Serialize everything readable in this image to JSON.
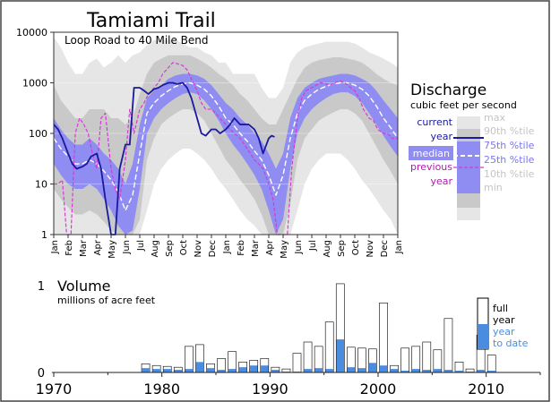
{
  "chart_data": [
    {
      "type": "area",
      "title": "Tamiami Trail",
      "subtitle": "Loop Road to 40 Mile Bend",
      "y_scale": "log",
      "ylim": [
        1,
        10000
      ],
      "y_ticks": [
        "10000",
        "1000",
        "100",
        "10",
        "1"
      ],
      "x_tick_labels": [
        "Jan",
        "Feb",
        "Mar",
        "Apr",
        "May",
        "Jun",
        "Jul",
        "Aug",
        "Sep",
        "Oct",
        "Nov",
        "Dec",
        "Jan",
        "Feb",
        "Mar",
        "Apr",
        "May",
        "Jun",
        "Jul",
        "Aug",
        "Sep",
        "Oct",
        "Nov",
        "Dec",
        "Jan"
      ],
      "legend": {
        "title": "Discharge",
        "units": "cubic feet per second",
        "current": [
          "current",
          "year"
        ],
        "median": "median",
        "previous": [
          "previous",
          "year"
        ],
        "pct": [
          "max",
          "90th  %tile",
          "75th  %tile",
          "25th  %tile",
          "10th  %tile",
          "min"
        ]
      },
      "colors": {
        "max_min_band": "#e6e6e6",
        "p10_p90_band": "#c9c9c9",
        "p25_p75_band": "#8f8cf2",
        "median": "#ffffff",
        "current": "#1a1a9e",
        "previous": "#d63ad6"
      },
      "x_months": [
        0,
        0.5,
        1,
        1.5,
        2,
        2.5,
        3,
        3.5,
        4,
        4.5,
        5,
        5.5,
        6,
        6.5,
        7,
        7.5,
        8,
        8.5,
        9,
        9.5,
        10,
        10.5,
        11,
        11.5,
        12,
        12.5,
        13,
        13.5,
        14,
        14.5,
        15,
        15.5,
        16,
        16.5,
        17,
        17.5,
        18,
        18.5,
        19,
        19.5,
        20,
        20.5,
        21,
        21.5,
        22,
        22.5,
        23,
        23.5,
        24
      ],
      "series": [
        {
          "name": "max",
          "values": [
            8000,
            5000,
            2500,
            1500,
            1500,
            2500,
            3000,
            2000,
            2500,
            3500,
            2500,
            3500,
            4000,
            5500,
            7000,
            7000,
            7000,
            7000,
            6000,
            5000,
            5000,
            4000,
            3500,
            2500,
            2500,
            1500,
            1500,
            1500,
            1500,
            800,
            500,
            500,
            800,
            2500,
            4000,
            5000,
            5500,
            6000,
            6500,
            6500,
            6500,
            6500,
            6000,
            5000,
            4000,
            3500,
            3000,
            2500,
            2000
          ]
        },
        {
          "name": "90th %tile",
          "values": [
            900,
            450,
            300,
            200,
            200,
            300,
            300,
            300,
            200,
            200,
            150,
            200,
            600,
            1500,
            2500,
            3000,
            3500,
            3500,
            3500,
            3500,
            3000,
            2500,
            2000,
            1500,
            1200,
            900,
            600,
            450,
            300,
            200,
            150,
            150,
            300,
            600,
            1200,
            2000,
            2500,
            2800,
            3000,
            3200,
            3200,
            3000,
            2800,
            2500,
            2000,
            1500,
            1200,
            1000,
            900
          ]
        },
        {
          "name": "75th %tile",
          "values": [
            200,
            120,
            80,
            60,
            60,
            80,
            60,
            40,
            30,
            20,
            10,
            25,
            150,
            500,
            700,
            900,
            1200,
            1400,
            1500,
            1500,
            1400,
            1200,
            900,
            600,
            400,
            300,
            200,
            150,
            100,
            70,
            40,
            20,
            40,
            200,
            500,
            800,
            1000,
            1200,
            1300,
            1400,
            1500,
            1500,
            1400,
            1200,
            1000,
            700,
            450,
            300,
            200
          ]
        },
        {
          "name": "median",
          "values": [
            80,
            50,
            35,
            25,
            25,
            30,
            25,
            18,
            12,
            7,
            3,
            6,
            40,
            250,
            400,
            550,
            700,
            850,
            950,
            1000,
            900,
            750,
            550,
            350,
            200,
            150,
            100,
            70,
            45,
            30,
            15,
            6,
            15,
            80,
            250,
            450,
            600,
            750,
            850,
            950,
            1000,
            1000,
            900,
            750,
            550,
            350,
            200,
            130,
            80
          ]
        },
        {
          "name": "25th %tile",
          "values": [
            25,
            15,
            10,
            8,
            8,
            10,
            8,
            5,
            3,
            1.5,
            1,
            1.2,
            8,
            100,
            200,
            300,
            400,
            500,
            600,
            650,
            600,
            450,
            300,
            180,
            100,
            60,
            40,
            25,
            15,
            8,
            3,
            1,
            2,
            20,
            100,
            200,
            300,
            400,
            500,
            600,
            650,
            650,
            550,
            400,
            250,
            150,
            90,
            55,
            35
          ]
        },
        {
          "name": "10th %tile",
          "values": [
            8,
            5,
            3.5,
            2.5,
            2.5,
            3,
            2.5,
            1.8,
            1.2,
            1,
            1,
            1,
            2,
            30,
            80,
            150,
            200,
            250,
            300,
            300,
            250,
            180,
            100,
            55,
            30,
            20,
            12,
            8,
            5,
            2.5,
            1,
            1,
            1,
            4,
            30,
            80,
            120,
            180,
            220,
            260,
            300,
            300,
            250,
            180,
            100,
            55,
            30,
            18,
            10
          ]
        },
        {
          "name": "min",
          "values": [
            1,
            1,
            1,
            1,
            1,
            1,
            1,
            1,
            1,
            1,
            1,
            1,
            1,
            3,
            10,
            20,
            30,
            40,
            50,
            50,
            40,
            30,
            20,
            12,
            8,
            5,
            3,
            2,
            1.5,
            1,
            1,
            1,
            1,
            1,
            3,
            10,
            20,
            30,
            40,
            40,
            40,
            30,
            20,
            12,
            8,
            5,
            3,
            2,
            1
          ]
        },
        {
          "name": "current year",
          "x": [
            0,
            0.3,
            0.6,
            1,
            1.3,
            1.6,
            2,
            2.3,
            2.6,
            3,
            3.3,
            3.6,
            4,
            4.3,
            4.6,
            5,
            5.3,
            5.6,
            6,
            6.3,
            6.6,
            7,
            7.3,
            7.6,
            8,
            8.3,
            8.6,
            9,
            9.3,
            9.6,
            10,
            10.3,
            10.6,
            11,
            11.3,
            11.6,
            12,
            12.3,
            12.6,
            13,
            13.3,
            13.6,
            14,
            14.3,
            14.6,
            15,
            15.2,
            15.4
          ],
          "values": [
            150,
            120,
            80,
            40,
            25,
            20,
            22,
            25,
            35,
            40,
            20,
            5,
            1,
            1,
            20,
            60,
            60,
            800,
            800,
            700,
            600,
            750,
            800,
            900,
            1000,
            1000,
            950,
            1000,
            800,
            500,
            200,
            100,
            90,
            120,
            120,
            100,
            120,
            150,
            200,
            150,
            150,
            150,
            120,
            80,
            40,
            80,
            90,
            85
          ]
        },
        {
          "name": "previous year",
          "x": [
            0,
            0.3,
            0.6,
            0.9,
            1.2,
            1.5,
            1.8,
            2.1,
            2.4,
            2.7,
            3,
            3.3,
            3.6,
            4,
            4.3,
            4.6,
            5,
            5.3,
            5.6,
            6,
            6.3,
            6.6,
            7,
            7.3,
            7.6,
            8,
            8.3,
            8.6,
            9,
            9.3,
            9.6,
            10,
            10.3,
            10.6,
            11,
            11.3,
            11.6,
            12,
            12.3,
            12.6,
            13,
            13.3,
            13.6,
            14,
            14.3,
            14.6,
            15,
            15.3,
            15.6,
            16,
            16.3,
            16.6,
            17,
            17.3,
            17.6,
            18,
            18.3,
            18.6,
            19,
            19.3,
            19.6,
            20,
            20.3,
            20.6,
            21,
            21.3,
            21.6,
            22,
            22.3,
            22.6,
            23,
            23.3,
            23.6,
            24
          ],
          "values": [
            10,
            10,
            12,
            1,
            1,
            100,
            200,
            150,
            100,
            40,
            20,
            200,
            250,
            20,
            8,
            5,
            30,
            300,
            100,
            300,
            400,
            600,
            800,
            1000,
            1500,
            2000,
            2500,
            2400,
            2200,
            1800,
            1200,
            700,
            400,
            300,
            300,
            250,
            200,
            150,
            120,
            100,
            80,
            60,
            45,
            30,
            25,
            20,
            10,
            5,
            1,
            1,
            1,
            20,
            200,
            500,
            700,
            800,
            900,
            1000,
            950,
            900,
            1000,
            1100,
            1000,
            850,
            700,
            500,
            300,
            200,
            180,
            120,
            100,
            100,
            80,
            80
          ]
        }
      ]
    },
    {
      "type": "bar",
      "title": "Volume",
      "subtitle": "millions of acre feet",
      "xlim": [
        1970,
        2015
      ],
      "ylim": [
        0,
        1.05
      ],
      "y_ticks": [
        "1",
        "0"
      ],
      "x_ticks": [
        "1970",
        "1980",
        "1990",
        "2000",
        "2010"
      ],
      "legend": {
        "full": [
          "full",
          "year"
        ],
        "ytd": [
          "year",
          "to date"
        ]
      },
      "colors": {
        "full_year": "#ffffff",
        "year_to_date": "#4a8de0"
      },
      "years": [
        1978,
        1979,
        1980,
        1981,
        1982,
        1983,
        1984,
        1985,
        1986,
        1987,
        1988,
        1989,
        1990,
        1991,
        1992,
        1993,
        1994,
        1995,
        1996,
        1997,
        1998,
        1999,
        2000,
        2001,
        2002,
        2003,
        2004,
        2005,
        2006,
        2007,
        2008,
        2009,
        2010
      ],
      "full_year": [
        0.1,
        0.08,
        0.07,
        0.06,
        0.3,
        0.32,
        0.1,
        0.16,
        0.24,
        0.12,
        0.14,
        0.16,
        0.06,
        0.04,
        0.22,
        0.35,
        0.3,
        0.58,
        1.02,
        0.29,
        0.28,
        0.27,
        0.8,
        0.08,
        0.28,
        0.3,
        0.35,
        0.26,
        0.62,
        0.12,
        0.04,
        0.43,
        0.2
      ],
      "year_to_date": [
        0.05,
        0.04,
        0.04,
        0.03,
        0.04,
        0.12,
        0.05,
        0.03,
        0.04,
        0.06,
        0.08,
        0.08,
        0.03,
        0.01,
        0.01,
        0.04,
        0.05,
        0.04,
        0.38,
        0.06,
        0.05,
        0.11,
        0.08,
        0.04,
        0.02,
        0.04,
        0.03,
        0.04,
        0.03,
        0.02,
        0.01,
        0.03,
        0.02
      ]
    }
  ]
}
